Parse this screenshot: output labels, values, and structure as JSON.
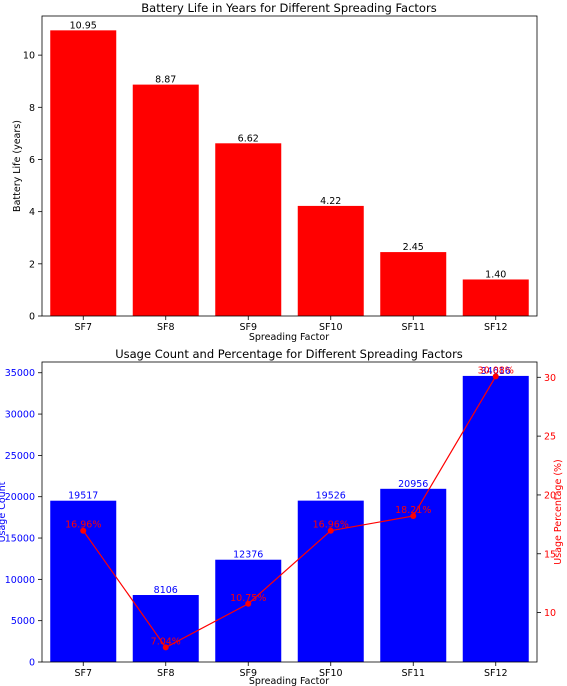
{
  "chart_data": [
    {
      "type": "bar",
      "title": "Battery Life in Years for Different Spreading Factors",
      "xlabel": "Spreading Factor",
      "ylabel": "Battery Life (years)",
      "categories": [
        "SF7",
        "SF8",
        "SF9",
        "SF10",
        "SF11",
        "SF12"
      ],
      "values": [
        10.95,
        8.87,
        6.62,
        4.22,
        2.45,
        1.4
      ],
      "value_labels": [
        "10.95",
        "8.87",
        "6.62",
        "4.22",
        "2.45",
        "1.40"
      ],
      "ylim": [
        0,
        11.5
      ],
      "yticks": [
        0,
        2,
        4,
        6,
        8,
        10
      ],
      "ytick_labels": [
        "0",
        "2",
        "4",
        "6",
        "8",
        "10"
      ],
      "bar_color": "#ff0000",
      "grid": false
    },
    {
      "type": "bar",
      "title": "Usage Count and Percentage for Different Spreading Factors",
      "xlabel": "Spreading Factor",
      "ylabel": "Usage Count",
      "y2label": "Usage Percentage (%)",
      "categories": [
        "SF7",
        "SF8",
        "SF9",
        "SF10",
        "SF11",
        "SF12"
      ],
      "values": [
        19517,
        8106,
        12376,
        19526,
        20956,
        34616
      ],
      "value_labels": [
        "19517",
        "8106",
        "12376",
        "19526",
        "20956",
        "34616"
      ],
      "percent": [
        16.96,
        7.04,
        10.75,
        16.96,
        18.21,
        30.08
      ],
      "percent_labels": [
        "16.96%",
        "7.04%",
        "10.75%",
        "16.96%",
        "18.21%",
        "30.08%"
      ],
      "ylim": [
        0,
        36300
      ],
      "yticks": [
        0,
        5000,
        10000,
        15000,
        20000,
        25000,
        30000,
        35000
      ],
      "ytick_labels": [
        "0",
        "5000",
        "10000",
        "15000",
        "20000",
        "25000",
        "30000",
        "35000"
      ],
      "y2lim": [
        5.8,
        31.3
      ],
      "y2ticks": [
        10,
        15,
        20,
        25,
        30
      ],
      "y2tick_labels": [
        "10",
        "15",
        "20",
        "25",
        "30"
      ],
      "bar_color": "#0000ff",
      "line_color": "#ff0000",
      "grid": false
    }
  ]
}
